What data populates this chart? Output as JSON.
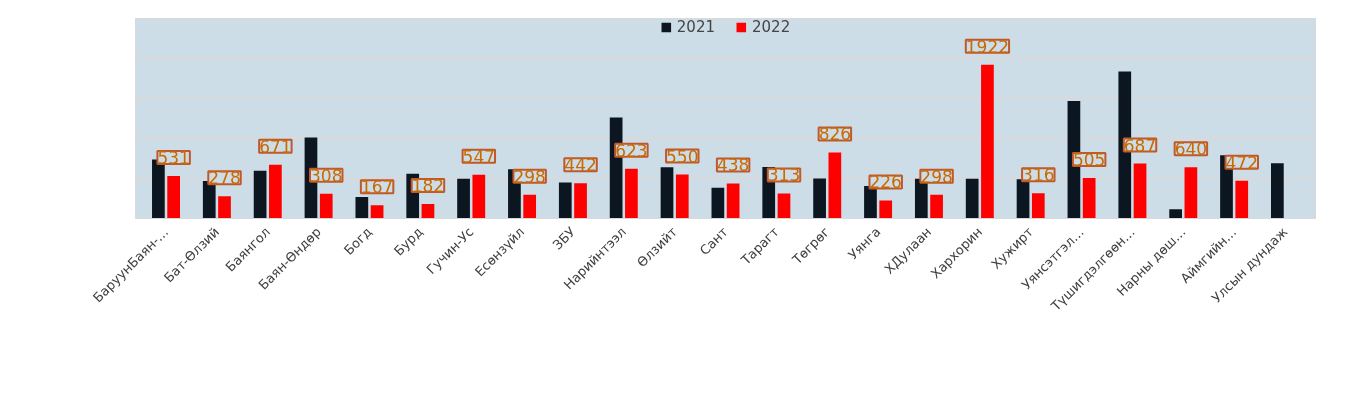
{
  "chart_data": {
    "type": "bar",
    "categories": [
      "БаруунБаян-…",
      "Бат-Өлзий",
      "Баянгол",
      "Баян-Өндөр",
      "Богд",
      "Бурд",
      "Гучин-Ус",
      "Есөнзүйл",
      "ЗБУ",
      "Нарийнтээл",
      "Өлзийт",
      "Сант",
      "Тарагт",
      "Төгрөг",
      "Уянга",
      "ХДулаан",
      "Хархорин",
      "Хужирт",
      "Уянсэтгэл…",
      "Түшигдэлгөөн…",
      "Нарны дөш…",
      "Аймгийн…",
      "Улсын дундаж"
    ],
    "series": [
      {
        "name": "2021",
        "color": "#0b1620",
        "values": [
          737,
          469,
          598,
          1013,
          270,
          558,
          496,
          616,
          451,
          1263,
          640,
          384,
          643,
          500,
          406,
          496,
          496,
          491,
          1469,
          1839,
          116,
          790,
          692
        ]
      },
      {
        "name": "2022",
        "color": "#ff0000",
        "values": [
          531,
          278,
          671,
          308,
          167,
          182,
          547,
          298,
          442,
          623,
          550,
          438,
          313,
          826,
          226,
          298,
          1922,
          316,
          505,
          687,
          640,
          472,
          null
        ],
        "value_labels": [
          "531",
          "278",
          "671",
          "308",
          "167",
          "182",
          "547",
          "298",
          "442",
          "623",
          "550",
          "438",
          "313",
          "826",
          "226",
          "298",
          "1922",
          "316",
          "505",
          "687",
          "640",
          "472",
          null
        ]
      }
    ],
    "ylim": [
      0,
      2500
    ],
    "yticks": [
      {
        "value": 0,
        "label": null
      },
      {
        "value": 500,
        "label": null
      },
      {
        "value": 1000,
        "label": null
      },
      {
        "value": 1500,
        "label": null
      },
      {
        "value": 2000,
        "label": null
      },
      {
        "value": 2500,
        "label": null
      }
    ],
    "grid": "y",
    "legend": "top",
    "tick_labels": "x"
  }
}
